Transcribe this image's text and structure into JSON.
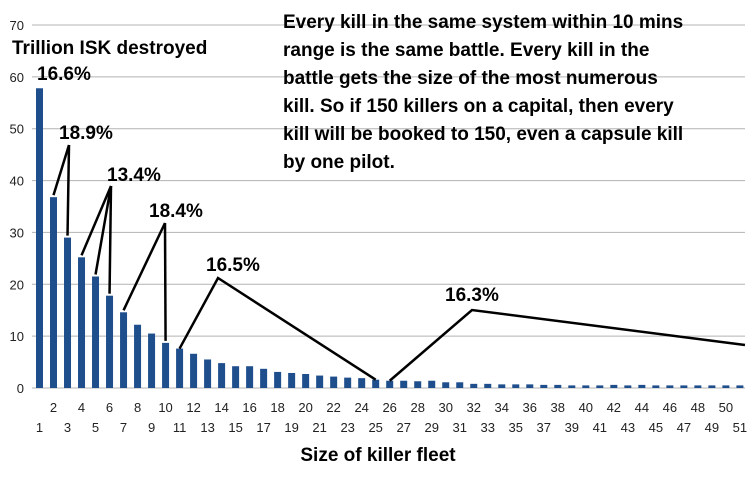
{
  "chart_data": {
    "type": "bar",
    "ylabel": "Trillion ISK destroyed",
    "xlabel": "Size of killer fleet",
    "ylim": [
      0,
      70
    ],
    "yticks": [
      0,
      10,
      20,
      30,
      40,
      50,
      60,
      70
    ],
    "grid": "horizontal",
    "bar_color": "#1f4e8c",
    "x": [
      1,
      2,
      3,
      4,
      5,
      6,
      7,
      8,
      9,
      10,
      11,
      12,
      13,
      14,
      15,
      16,
      17,
      18,
      19,
      20,
      21,
      22,
      23,
      24,
      25,
      26,
      27,
      28,
      29,
      30,
      31,
      32,
      33,
      34,
      35,
      36,
      37,
      38,
      39,
      40,
      41,
      42,
      43,
      44,
      45,
      46,
      47,
      48,
      49,
      50,
      51
    ],
    "values": [
      57.8,
      36.8,
      29.0,
      25.2,
      21.5,
      17.8,
      14.6,
      12.2,
      10.5,
      8.7,
      7.6,
      6.6,
      5.5,
      4.8,
      4.2,
      4.2,
      3.7,
      3.1,
      2.9,
      2.7,
      2.4,
      2.2,
      2.0,
      1.9,
      1.6,
      1.4,
      1.4,
      1.3,
      1.4,
      1.1,
      1.1,
      0.8,
      0.8,
      0.7,
      0.7,
      0.7,
      0.6,
      0.6,
      0.5,
      0.5,
      0.5,
      0.6,
      0.5,
      0.6,
      0.5,
      0.5,
      0.5,
      0.5,
      0.5,
      0.5,
      0.5
    ],
    "xticks_upper": [
      "2",
      "4",
      "6",
      "8",
      "10",
      "12",
      "14",
      "16",
      "18",
      "20",
      "22",
      "24",
      "26",
      "28",
      "30",
      "32",
      "34",
      "36",
      "38",
      "40",
      "42",
      "44",
      "46",
      "48",
      "50"
    ],
    "xticks_lower": [
      "1",
      "3",
      "5",
      "7",
      "9",
      "11",
      "13",
      "15",
      "17",
      "19",
      "21",
      "23",
      "25",
      "27",
      "29",
      "31",
      "33",
      "35",
      "37",
      "39",
      "41",
      "43",
      "45",
      "47",
      "49",
      "51"
    ],
    "annotations": [
      {
        "label": "16.6%",
        "bars": [
          1
        ]
      },
      {
        "label": "18.9%",
        "bars": [
          2,
          3
        ]
      },
      {
        "label": "13.4%",
        "bars": [
          4,
          5,
          6
        ]
      },
      {
        "label": "18.4%",
        "bars": [
          7,
          10
        ]
      },
      {
        "label": "16.5%",
        "bars": [
          11,
          25
        ]
      },
      {
        "label": "16.3%",
        "bars": [
          26,
          51
        ]
      }
    ],
    "note": [
      "Every kill in the same system within 10 mins",
      "range is the same battle. Every kill in the",
      "battle gets the size of the most numerous",
      "kill. So if 150 killers on a capital, then every",
      "kill will be booked to 150, even a capsule kill",
      "by one pilot."
    ]
  }
}
